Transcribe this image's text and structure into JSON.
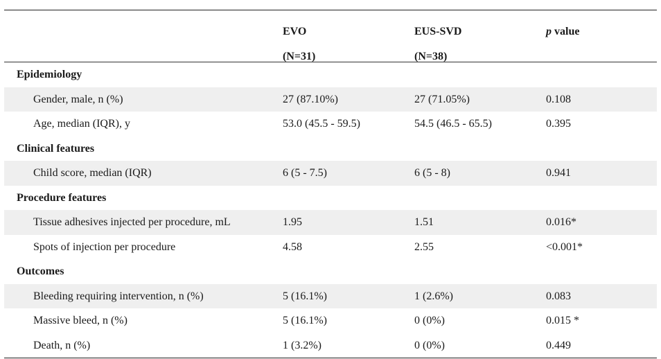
{
  "header": {
    "col1_line1": "EVO",
    "col1_line2": "(N=31)",
    "col2_line1": "EUS-SVD",
    "col2_line2": "(N=38)",
    "col3_italic": "p",
    "col3_rest": " value"
  },
  "sections": [
    {
      "title": "Epidemiology",
      "rows": [
        {
          "label": "Gender, male, n (%)",
          "evo": "27 (87.10%)",
          "eus": "27 (71.05%)",
          "p": "0.108"
        },
        {
          "label": "Age, median (IQR), y",
          "evo": "53.0 (45.5 - 59.5)",
          "eus": "54.5 (46.5 - 65.5)",
          "p": "0.395"
        }
      ]
    },
    {
      "title": "Clinical features",
      "rows": [
        {
          "label": "Child score, median (IQR)",
          "evo": "6 (5 - 7.5)",
          "eus": "6 (5 - 8)",
          "p": "0.941"
        }
      ]
    },
    {
      "title": "Procedure features",
      "rows": [
        {
          "label": "Tissue adhesives injected per procedure, mL",
          "evo": "1.95",
          "eus": "1.51",
          "p": "0.016*"
        },
        {
          "label": "Spots of injection per procedure",
          "evo": "4.58",
          "eus": "2.55",
          "p": "<0.001*"
        }
      ]
    },
    {
      "title": "Outcomes",
      "rows": [
        {
          "label": "Bleeding requiring intervention, n (%)",
          "evo": "5 (16.1%)",
          "eus": "1 (2.6%)",
          "p": "0.083"
        },
        {
          "label": "Massive bleed, n (%)",
          "evo": "5 (16.1%)",
          "eus": "0 (0%)",
          "p": "0.015 *"
        },
        {
          "label": "Death, n (%)",
          "evo": "1 (3.2%)",
          "eus": "0 (0%)",
          "p": "0.449"
        }
      ]
    }
  ]
}
